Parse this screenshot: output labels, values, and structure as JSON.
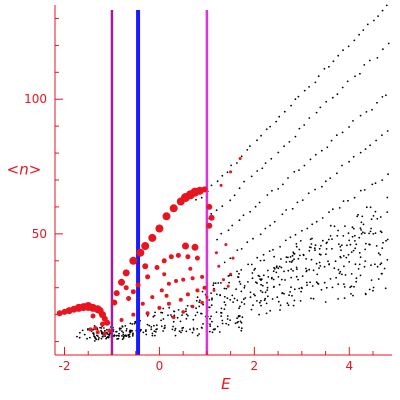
{
  "chart_data": {
    "type": "scatter",
    "title": "",
    "xlabel": "E",
    "ylabel": "<n>",
    "xlim": [
      -2.2,
      4.9
    ],
    "ylim": [
      5,
      135
    ],
    "x_ticks": [
      -2,
      0,
      2,
      4
    ],
    "x_tick_labels": [
      "-2",
      "0",
      "2",
      "4"
    ],
    "y_ticks": [
      50,
      100
    ],
    "y_tick_labels": [
      "50",
      "100"
    ],
    "grid": false,
    "legend": "none",
    "colors": {
      "axis": "#e8141e",
      "highlight_points": "#e8141e",
      "background_points": "#000000",
      "line_purple": "#9b1fa3",
      "line_blue": "#1a1aff",
      "line_magenta": "#dd33dd"
    },
    "vertical_lines": [
      {
        "x": -1.0,
        "color": "#9b1fa3"
      },
      {
        "x": -0.45,
        "color": "#1a1aff"
      },
      {
        "x": 1.0,
        "color": "#dd33dd"
      }
    ],
    "series": [
      {
        "color": "#e8141e",
        "values": [
          [
            -2.1,
            20.5,
            3
          ],
          [
            -2.0,
            21.0,
            3
          ],
          [
            -1.9,
            21.5,
            3.5
          ],
          [
            -1.8,
            22.0,
            3.5
          ],
          [
            -1.7,
            22.5,
            4
          ],
          [
            -1.6,
            22.8,
            4
          ],
          [
            -1.5,
            23.0,
            4.5
          ],
          [
            -1.4,
            22.5,
            4
          ],
          [
            -1.3,
            22.0,
            4
          ],
          [
            -1.25,
            21.5,
            3.5
          ],
          [
            -1.2,
            20.0,
            3.5
          ],
          [
            -1.15,
            18.5,
            3
          ],
          [
            -1.1,
            17.0,
            3
          ],
          [
            -1.4,
            19.5,
            2.5
          ],
          [
            -1.35,
            15.0,
            2
          ],
          [
            -1.3,
            13.5,
            2
          ],
          [
            -1.2,
            16.5,
            2.5
          ],
          [
            -1.15,
            13.0,
            2
          ],
          [
            -1.05,
            14.0,
            2
          ],
          [
            -1.45,
            14.5,
            2
          ],
          [
            -0.95,
            24.5,
            3
          ],
          [
            -0.9,
            28.0,
            3
          ],
          [
            -0.8,
            32.0,
            3.5
          ],
          [
            -0.7,
            35.5,
            3.5
          ],
          [
            -0.55,
            40.0,
            4
          ],
          [
            -0.4,
            43.0,
            4
          ],
          [
            -0.3,
            45.5,
            4
          ],
          [
            -0.15,
            48.5,
            4
          ],
          [
            0.0,
            52.0,
            4
          ],
          [
            0.15,
            56.5,
            4
          ],
          [
            0.3,
            59.5,
            4
          ],
          [
            0.45,
            62.0,
            4
          ],
          [
            0.55,
            63.5,
            4.5
          ],
          [
            0.65,
            64.5,
            4.5
          ],
          [
            0.75,
            65.5,
            4.5
          ],
          [
            0.85,
            66.0,
            4
          ],
          [
            0.95,
            66.5,
            3
          ],
          [
            1.05,
            60.0,
            3
          ],
          [
            1.1,
            56.0,
            3
          ],
          [
            1.05,
            53.0,
            3
          ],
          [
            -0.65,
            26.0,
            2.5
          ],
          [
            -0.55,
            28.5,
            2.5
          ],
          [
            -0.45,
            31.0,
            2.5
          ],
          [
            -0.25,
            34.0,
            2.5
          ],
          [
            -0.05,
            37.5,
            2.5
          ],
          [
            0.1,
            40.0,
            2.5
          ],
          [
            0.25,
            41.5,
            2.5
          ],
          [
            0.4,
            42.0,
            2.5
          ],
          [
            0.6,
            41.5,
            2.5
          ],
          [
            0.8,
            41.0,
            2.5
          ],
          [
            -0.35,
            24.0,
            2
          ],
          [
            -0.15,
            26.5,
            2
          ],
          [
            0.05,
            29.0,
            2
          ],
          [
            0.2,
            31.5,
            2
          ],
          [
            0.35,
            32.5,
            2
          ],
          [
            0.5,
            33.0,
            2
          ],
          [
            0.7,
            33.5,
            2
          ],
          [
            0.9,
            34.0,
            2
          ],
          [
            -0.25,
            20.5,
            2
          ],
          [
            0.0,
            22.5,
            2
          ],
          [
            0.2,
            24.0,
            2
          ],
          [
            0.45,
            25.5,
            2
          ],
          [
            0.6,
            27.5,
            2
          ],
          [
            0.8,
            29.0,
            2
          ],
          [
            0.95,
            30.0,
            2
          ],
          [
            0.3,
            19.0,
            1.8
          ],
          [
            0.5,
            21.0,
            1.8
          ],
          [
            0.7,
            23.0,
            1.8
          ],
          [
            0.9,
            24.5,
            1.8
          ],
          [
            -0.55,
            20.0,
            2
          ],
          [
            1.0,
            26.5,
            1.5
          ],
          [
            1.2,
            43.0,
            1.5
          ],
          [
            1.4,
            46.0,
            1.5
          ],
          [
            1.25,
            38.0,
            1.5
          ],
          [
            1.55,
            41.0,
            1.5
          ],
          [
            1.35,
            33.0,
            1.5
          ],
          [
            1.5,
            35.0,
            1.5
          ],
          [
            1.15,
            29.0,
            1.5
          ],
          [
            1.3,
            68.0,
            1.5
          ],
          [
            1.5,
            73.0,
            1.5
          ],
          [
            1.7,
            78.0,
            1.5
          ],
          [
            1.45,
            30.5,
            1.5
          ],
          [
            0.65,
            37.0,
            2
          ],
          [
            0.1,
            35.0,
            2
          ],
          [
            -0.8,
            18.0,
            2
          ],
          [
            -0.3,
            38.0,
            3
          ],
          [
            0.55,
            45.5,
            3.5
          ],
          [
            0.75,
            45.0,
            3.5
          ],
          [
            -0.7,
            30.0,
            2.5
          ],
          [
            0.15,
            27.0,
            2
          ]
        ]
      },
      {
        "color": "#000000",
        "generated": true
      }
    ]
  }
}
